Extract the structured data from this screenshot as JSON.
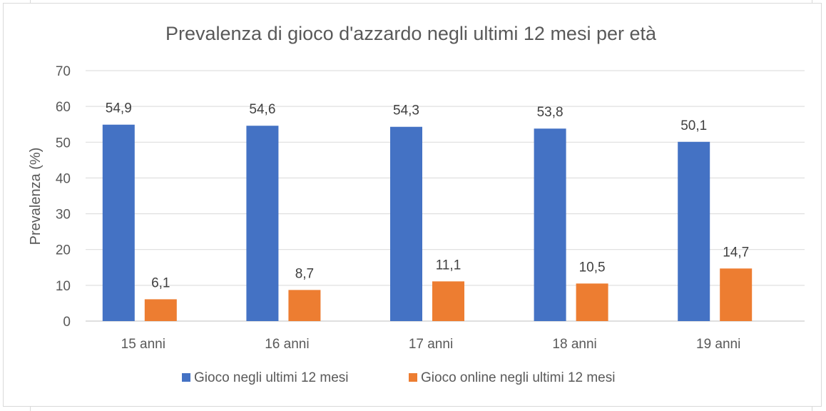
{
  "chart_data": {
    "type": "bar",
    "title": "Prevalenza di gioco d'azzardo negli ultimi 12 mesi per età",
    "xlabel": "",
    "ylabel": "Prevalenza (%)",
    "ylim": [
      0,
      70
    ],
    "yticks": [
      0,
      10,
      20,
      30,
      40,
      50,
      60,
      70
    ],
    "grid": true,
    "legend_position": "bottom",
    "categories": [
      "15 anni",
      "16 anni",
      "17 anni",
      "18 anni",
      "19 anni"
    ],
    "series": [
      {
        "name": "Gioco negli ultimi 12 mesi",
        "color": "#4472c4",
        "values": [
          54.9,
          54.6,
          54.3,
          53.8,
          50.1
        ],
        "labels": [
          "54,9",
          "54,6",
          "54,3",
          "53,8",
          "50,1"
        ]
      },
      {
        "name": "Gioco online negli ultimi 12 mesi",
        "color": "#ed7d31",
        "values": [
          6.1,
          8.7,
          11.1,
          10.5,
          14.7
        ],
        "labels": [
          "6,1",
          "8,7",
          "11,1",
          "10,5",
          "14,7"
        ]
      }
    ]
  }
}
